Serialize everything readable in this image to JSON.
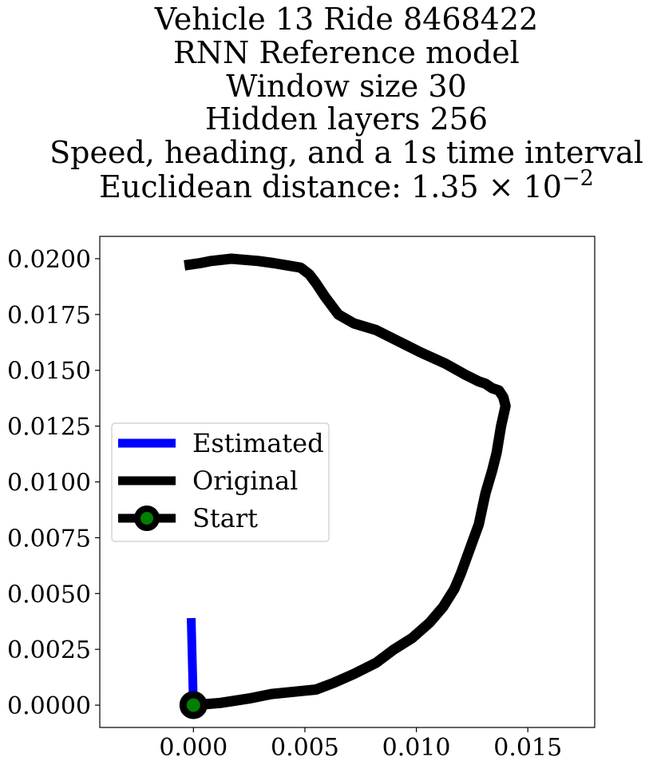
{
  "chart_data": {
    "type": "line",
    "title_lines": [
      "Vehicle 13 Ride 8468422",
      "RNN Reference model",
      "Window size 30",
      "Hidden layers 256",
      "Speed, heading, and a 1s time interval",
      "Euclidean distance: 1.35 × 10",
      "−2"
    ],
    "xlabel": "",
    "ylabel": "",
    "xlim": [
      -0.0042,
      0.018
    ],
    "ylim": [
      -0.001,
      0.021
    ],
    "x_ticks": [
      0.0,
      0.005,
      0.01,
      0.015
    ],
    "x_tick_labels": [
      "0.000",
      "0.005",
      "0.010",
      "0.015"
    ],
    "y_ticks": [
      0.0,
      0.0025,
      0.005,
      0.0075,
      0.01,
      0.0125,
      0.015,
      0.0175,
      0.02
    ],
    "y_tick_labels": [
      "0.0000",
      "0.0025",
      "0.0050",
      "0.0075",
      "0.0100",
      "0.0125",
      "0.0150",
      "0.0175",
      "0.0200"
    ],
    "grid": false,
    "legend_position": "center-left",
    "series": [
      {
        "name": "Estimated",
        "color": "#0000ff",
        "x": [
          -0.0001,
          0.0
        ],
        "y": [
          0.0039,
          0.0
        ]
      },
      {
        "name": "Original",
        "color": "#000000",
        "x": [
          0.0,
          0.0012,
          0.0025,
          0.0035,
          0.0045,
          0.0055,
          0.0063,
          0.0072,
          0.0082,
          0.009,
          0.0098,
          0.0106,
          0.0112,
          0.0117,
          0.012,
          0.0124,
          0.0128,
          0.0131,
          0.0134,
          0.0136,
          0.0138,
          0.014,
          0.0139,
          0.0137,
          0.0134,
          0.0131,
          0.0128,
          0.0122,
          0.0113,
          0.0102,
          0.0092,
          0.0082,
          0.0072,
          0.0065,
          0.0059,
          0.0055,
          0.0052,
          0.0048,
          0.0042,
          0.0036,
          0.0029,
          0.0017,
          0.0008,
          0.0003,
          -0.0004
        ],
        "y": [
          0.0,
          0.0001,
          0.0003,
          0.0005,
          0.0006,
          0.0007,
          0.001,
          0.0014,
          0.0019,
          0.0025,
          0.003,
          0.0037,
          0.0044,
          0.0052,
          0.0059,
          0.007,
          0.0081,
          0.0095,
          0.0105,
          0.0113,
          0.0125,
          0.0134,
          0.0138,
          0.0141,
          0.0142,
          0.0144,
          0.0145,
          0.0148,
          0.0153,
          0.0158,
          0.0163,
          0.0168,
          0.0171,
          0.0175,
          0.0183,
          0.0189,
          0.0193,
          0.0196,
          0.0197,
          0.0198,
          0.0199,
          0.02,
          0.0199,
          0.0198,
          0.0197
        ]
      }
    ],
    "start": {
      "name": "Start",
      "x": 0.0,
      "y": 0.0,
      "fill_color": "#008000",
      "edge_color": "#000000"
    },
    "legend_entries": [
      "Estimated",
      "Original",
      "Start"
    ]
  }
}
